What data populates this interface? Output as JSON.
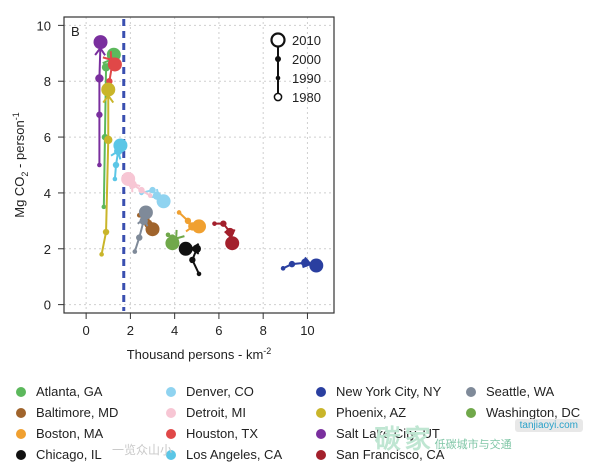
{
  "chart_data": {
    "type": "line",
    "panel_label": "B",
    "xlabel": "Thousand persons - km",
    "xlabel_sup": "-2",
    "ylabel_main": "Mg CO",
    "ylabel_sub": "2",
    "ylabel_tail": " - person",
    "ylabel_sup": "-1",
    "xlim": [
      -1,
      11.2
    ],
    "ylim": [
      -0.3,
      10.3
    ],
    "xticks": [
      0,
      2,
      4,
      6,
      8,
      10
    ],
    "yticks": [
      0,
      2,
      4,
      6,
      8,
      10
    ],
    "grid": true,
    "reference_line_x": 1.7,
    "reference_line_color": "#3a4fb0",
    "year_legend": [
      "2010",
      "2000",
      "1990",
      "1980"
    ],
    "legend_placement": "top-right",
    "series": [
      {
        "name": "Atlanta, GA",
        "color": "#5cb85c",
        "points": [
          [
            0.8,
            3.5
          ],
          [
            0.85,
            6.0
          ],
          [
            0.9,
            8.5
          ],
          [
            1.25,
            8.95
          ]
        ]
      },
      {
        "name": "Baltimore, MD",
        "color": "#a0642c",
        "points": [
          [
            2.4,
            3.2
          ],
          [
            2.7,
            3.0
          ],
          [
            2.8,
            2.9
          ],
          [
            3.0,
            2.7
          ]
        ]
      },
      {
        "name": "Boston, MA",
        "color": "#f0a030",
        "points": [
          [
            4.2,
            3.3
          ],
          [
            4.6,
            3.0
          ],
          [
            4.8,
            2.8
          ],
          [
            5.1,
            2.8
          ]
        ]
      },
      {
        "name": "Chicago, IL",
        "color": "#111111",
        "points": [
          [
            5.1,
            1.1
          ],
          [
            4.8,
            1.6
          ],
          [
            5.0,
            2.0
          ],
          [
            4.5,
            2.0
          ]
        ]
      },
      {
        "name": "Denver, CO",
        "color": "#8fd3f0",
        "points": [
          [
            2.5,
            4.0
          ],
          [
            3.0,
            4.1
          ],
          [
            3.2,
            3.9
          ],
          [
            3.5,
            3.7
          ]
        ]
      },
      {
        "name": "Detroit, MI",
        "color": "#f7c6d4",
        "points": [
          [
            2.9,
            3.9
          ],
          [
            2.5,
            4.1
          ],
          [
            2.1,
            4.3
          ],
          [
            1.9,
            4.5
          ]
        ]
      },
      {
        "name": "Houston, TX",
        "color": "#e04848",
        "points": [
          [
            1.0,
            7.6
          ],
          [
            1.05,
            8.0
          ],
          [
            1.2,
            8.7
          ],
          [
            1.3,
            8.6
          ]
        ]
      },
      {
        "name": "Los Angeles, CA",
        "color": "#5bc6e6",
        "points": [
          [
            1.3,
            4.5
          ],
          [
            1.35,
            5.0
          ],
          [
            1.45,
            5.5
          ],
          [
            1.55,
            5.7
          ]
        ]
      },
      {
        "name": "New York City, NY",
        "color": "#2a3fa0",
        "points": [
          [
            8.9,
            1.3
          ],
          [
            9.3,
            1.45
          ],
          [
            9.9,
            1.5
          ],
          [
            10.4,
            1.4
          ]
        ]
      },
      {
        "name": "Phoenix, AZ",
        "color": "#c9b52a",
        "points": [
          [
            0.7,
            1.8
          ],
          [
            0.9,
            2.6
          ],
          [
            1.0,
            5.9
          ],
          [
            1.0,
            7.7
          ]
        ]
      },
      {
        "name": "Salt Lake City, UT",
        "color": "#7a2f9e",
        "points": [
          [
            0.6,
            5.0
          ],
          [
            0.6,
            6.8
          ],
          [
            0.6,
            8.1
          ],
          [
            0.65,
            9.4
          ]
        ]
      },
      {
        "name": "San Francisco, CA",
        "color": "#a3202c",
        "points": [
          [
            5.8,
            2.9
          ],
          [
            6.2,
            2.9
          ],
          [
            6.5,
            2.6
          ],
          [
            6.6,
            2.2
          ]
        ]
      },
      {
        "name": "Seattle, WA",
        "color": "#7f8a99",
        "points": [
          [
            2.2,
            1.9
          ],
          [
            2.4,
            2.4
          ],
          [
            2.6,
            3.0
          ],
          [
            2.7,
            3.3
          ]
        ]
      },
      {
        "name": "Washington, DC",
        "color": "#70a84a",
        "points": [
          [
            3.7,
            2.5
          ],
          [
            3.9,
            2.4
          ],
          [
            4.0,
            2.3
          ],
          [
            3.9,
            2.2
          ]
        ]
      }
    ]
  },
  "legend": {
    "columns": [
      [
        "Atlanta, GA",
        "Baltimore, MD",
        "Boston, MA",
        "Chicago, IL"
      ],
      [
        "Denver, CO",
        "Detroit, MI",
        "Houston, TX",
        "Los Angeles, CA"
      ],
      [
        "New York City, NY",
        "Phoenix, AZ",
        "Salt Lake City, UT",
        "San Francisco, CA"
      ],
      [
        "Seattle, WA",
        "Washington, DC"
      ]
    ]
  },
  "watermark": {
    "left_text": "一览众山小",
    "big_text": "碳",
    "big_text2": "家",
    "small_text": "低碳城市与交通",
    "badge": "tanjiaoyi.com"
  }
}
